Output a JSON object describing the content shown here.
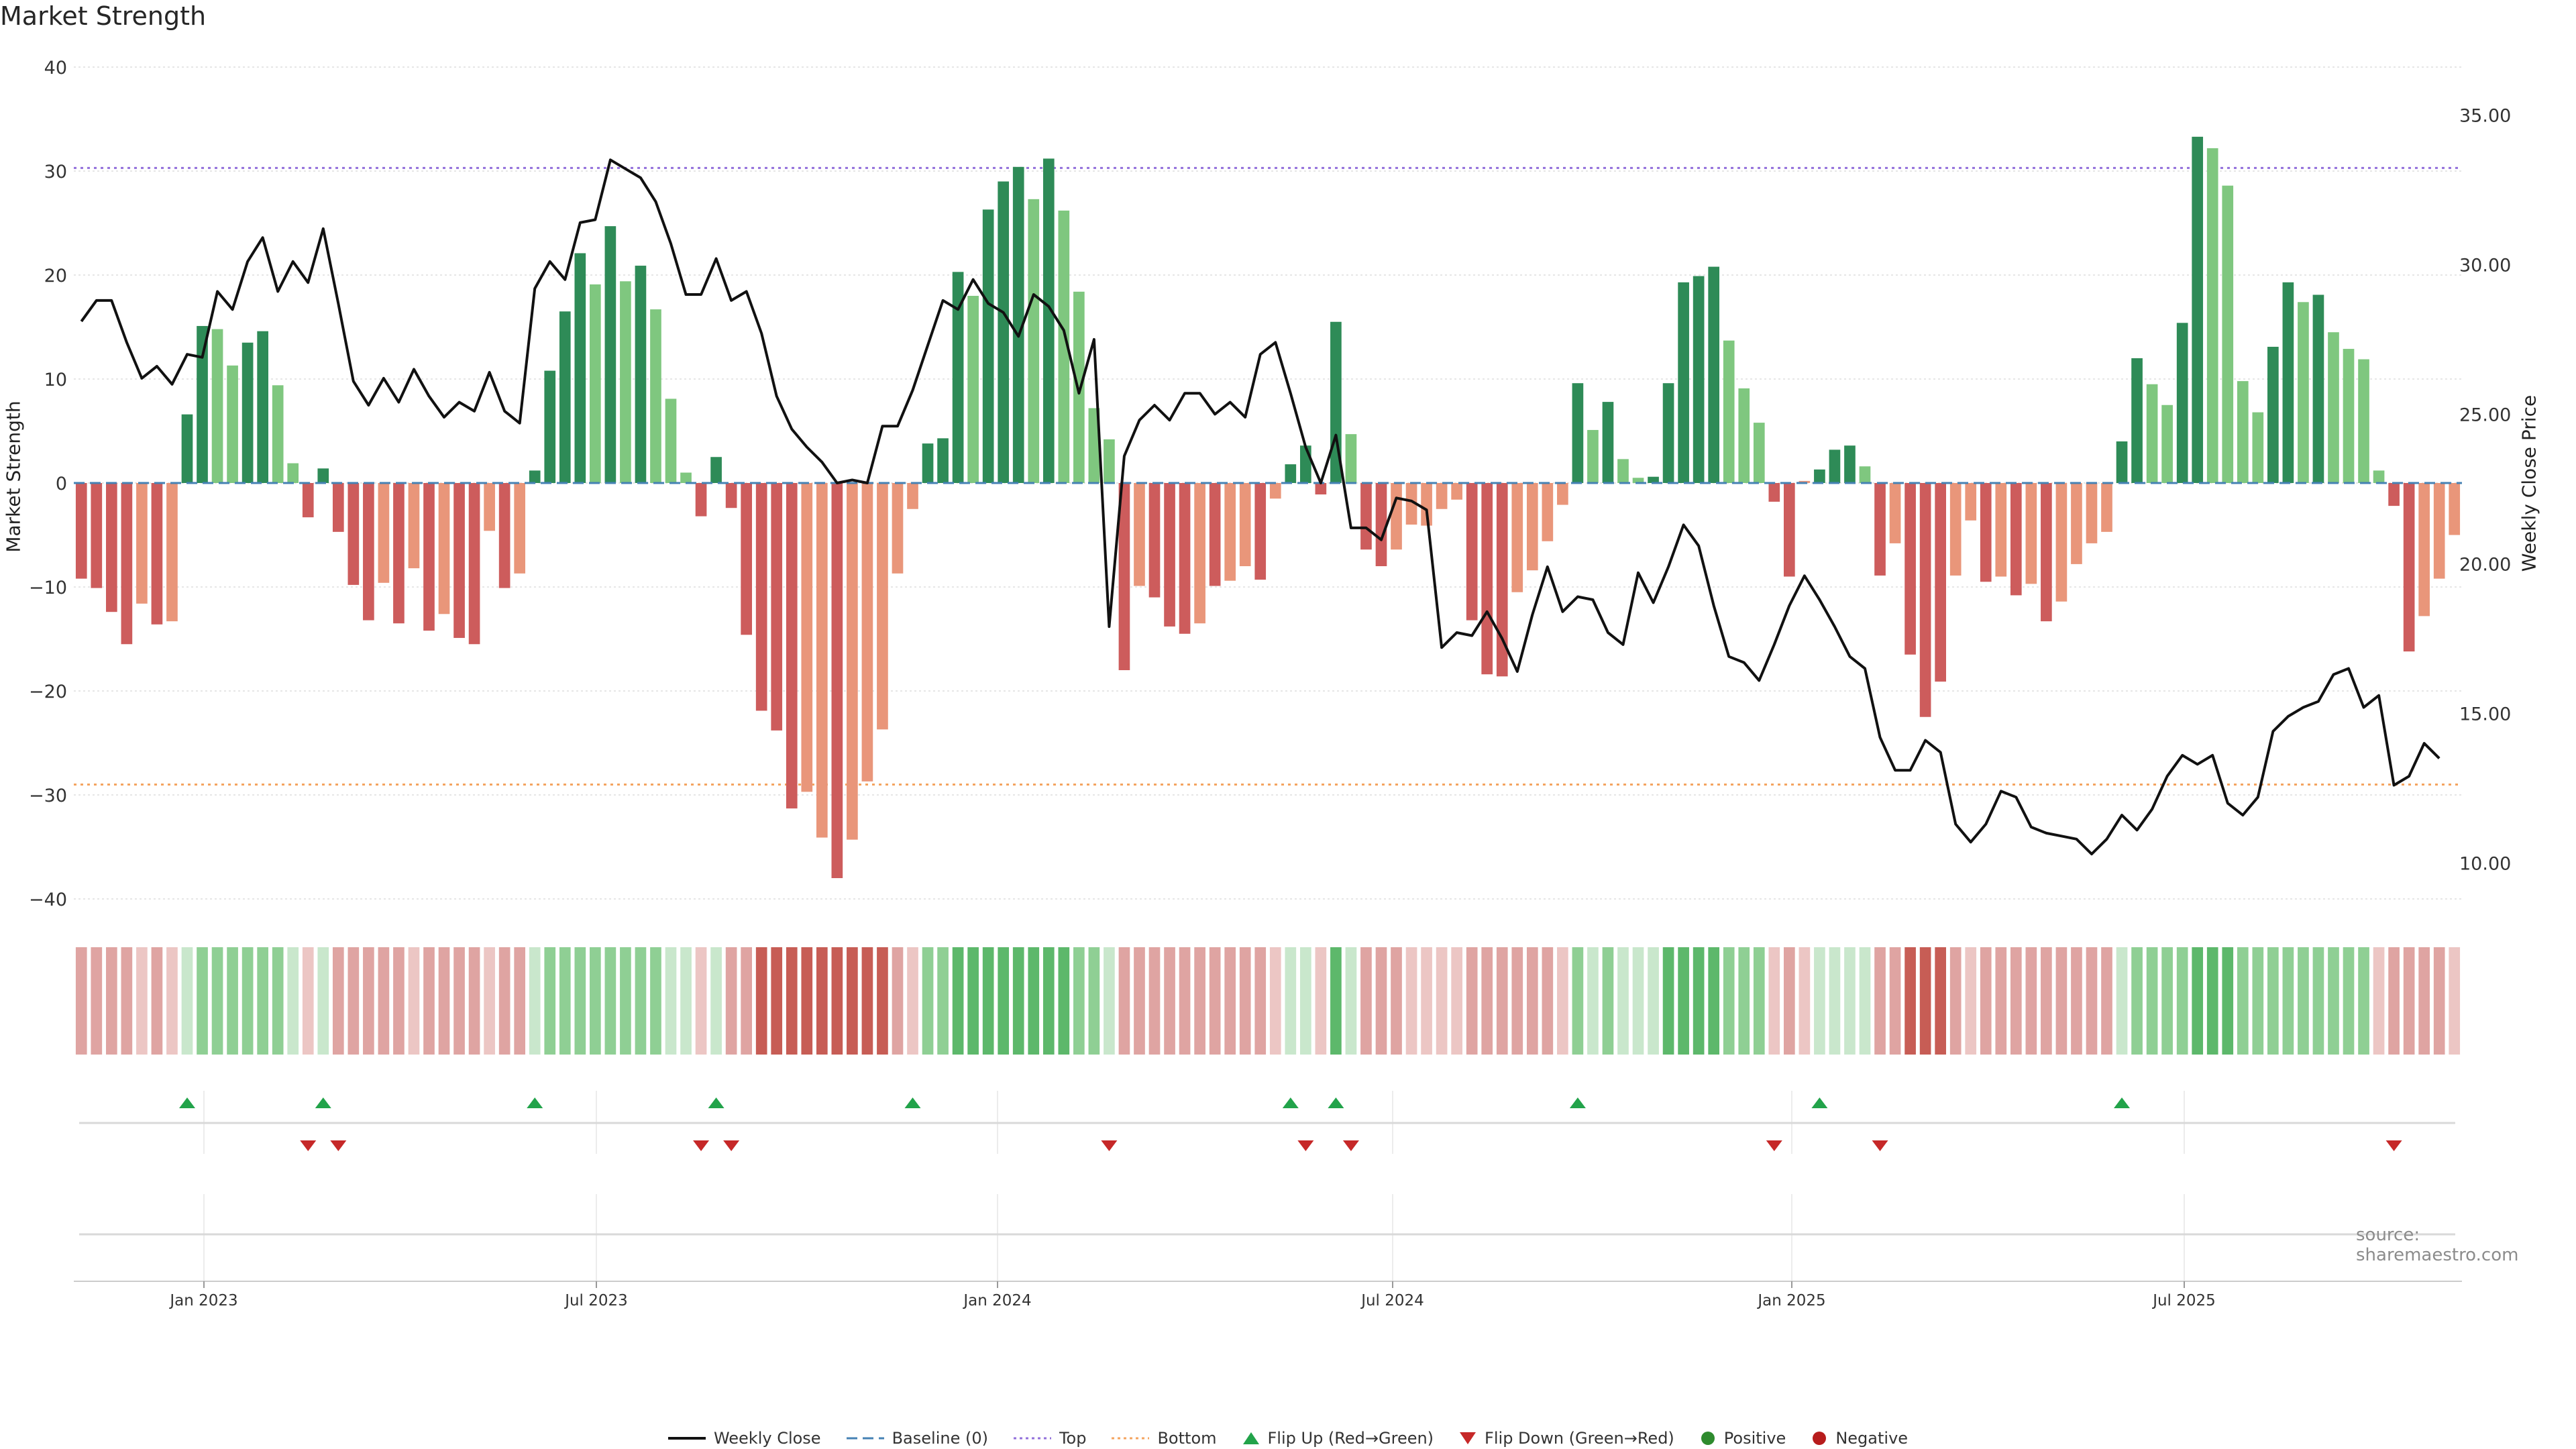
{
  "chart_data": {
    "type": "bar",
    "title": "Market Strength",
    "ylabel": "Market Strength",
    "ylabel_right": "Weekly Close Price",
    "source": "source: sharemaestro.com",
    "ylim": [
      -40,
      40
    ],
    "ylim_right": [
      8.8,
      36.6
    ],
    "yticks": [
      "40",
      "30",
      "20",
      "10",
      "0",
      "−10",
      "−20",
      "−30",
      "−40"
    ],
    "yticks_right": [
      "35.00",
      "30.00",
      "25.00",
      "20.00",
      "15.00",
      "10.00"
    ],
    "xticks": [
      "Jan 2023",
      "Jul 2023",
      "Jan 2024",
      "Jul 2024",
      "Jan 2025",
      "Jul 2025"
    ],
    "top_threshold": 30.3,
    "bottom_threshold": -29.0,
    "strength": [
      -9.2,
      -10.1,
      -12.4,
      -15.5,
      -11.6,
      -13.6,
      -13.3,
      6.6,
      15.1,
      14.8,
      11.3,
      13.5,
      14.6,
      9.4,
      1.9,
      -3.3,
      1.4,
      -4.7,
      -9.8,
      -13.2,
      -9.6,
      -13.5,
      -8.2,
      -14.2,
      -12.6,
      -14.9,
      -15.5,
      -4.6,
      -10.1,
      -8.7,
      1.2,
      10.8,
      16.5,
      22.1,
      19.1,
      24.7,
      19.4,
      20.9,
      16.7,
      8.1,
      1.0,
      -3.2,
      2.5,
      -2.4,
      -14.6,
      -21.9,
      -23.8,
      -31.3,
      -29.7,
      -34.1,
      -38.0,
      -34.3,
      -28.7,
      -23.7,
      -8.7,
      -2.5,
      3.8,
      4.3,
      20.3,
      18.0,
      26.3,
      29.0,
      30.4,
      27.3,
      31.2,
      26.2,
      18.4,
      7.2,
      4.2,
      -18.0,
      -9.9,
      -11.0,
      -13.8,
      -14.5,
      -13.5,
      -9.9,
      -9.4,
      -8.0,
      -9.3,
      -1.5,
      1.8,
      3.6,
      -1.1,
      15.5,
      4.7,
      -6.4,
      -8.0,
      -6.4,
      -4.0,
      -4.1,
      -2.5,
      -1.6,
      -13.2,
      -18.4,
      -18.6,
      -10.5,
      -8.4,
      -5.6,
      -2.1,
      9.6,
      5.1,
      7.8,
      2.3,
      0.5,
      0.6,
      9.6,
      19.3,
      19.9,
      20.8,
      13.7,
      9.1,
      5.8,
      -1.8,
      -9.0,
      0.2,
      1.3,
      3.2,
      3.6,
      1.6,
      -8.9,
      -5.8,
      -16.5,
      -22.5,
      -19.1,
      -8.9,
      -3.6,
      -9.5,
      -9.0,
      -10.8,
      -9.7,
      -13.3,
      -11.4,
      -7.8,
      -5.8,
      -4.7,
      4.0,
      12.0,
      9.5,
      7.5,
      15.4,
      33.3,
      32.2,
      28.6,
      9.8,
      6.8,
      13.1,
      19.3,
      17.4,
      18.1,
      14.5,
      12.9,
      11.9,
      1.2,
      -2.2,
      -16.2,
      -12.8,
      -9.2,
      -5.0
    ],
    "strength_styles": [
      "nd",
      "nd",
      "nd",
      "nd",
      "nl",
      "nd",
      "nl",
      "pd",
      "pd",
      "pl",
      "pl",
      "pd",
      "pd",
      "pl",
      "pl",
      "nd",
      "pd",
      "nd",
      "nd",
      "nd",
      "nl",
      "nd",
      "nl",
      "nd",
      "nl",
      "nd",
      "nd",
      "nl",
      "nd",
      "nl",
      "pd",
      "pd",
      "pd",
      "pd",
      "pl",
      "pd",
      "pl",
      "pd",
      "pl",
      "pl",
      "pl",
      "nd",
      "pd",
      "nd",
      "nd",
      "nd",
      "nd",
      "nd",
      "nl",
      "nl",
      "nd",
      "nl",
      "nl",
      "nl",
      "nl",
      "nl",
      "pd",
      "pd",
      "pd",
      "pl",
      "pd",
      "pd",
      "pd",
      "pl",
      "pd",
      "pl",
      "pl",
      "pl",
      "pl",
      "nd",
      "nl",
      "nd",
      "nd",
      "nd",
      "nl",
      "nd",
      "nl",
      "nl",
      "nd",
      "nl",
      "pd",
      "pd",
      "nd",
      "pd",
      "pl",
      "nd",
      "nd",
      "nl",
      "nl",
      "nl",
      "nl",
      "nl",
      "nd",
      "nd",
      "nd",
      "nl",
      "nl",
      "nl",
      "nl",
      "pd",
      "pl",
      "pd",
      "pl",
      "pl",
      "pd",
      "pd",
      "pd",
      "pd",
      "pd",
      "pl",
      "pl",
      "pl",
      "nd",
      "nd",
      "nl",
      "pd",
      "pd",
      "pd",
      "pl",
      "nd",
      "nl",
      "nd",
      "nd",
      "nd",
      "nl",
      "nl",
      "nd",
      "nl",
      "nd",
      "nl",
      "nd",
      "nl",
      "nl",
      "nl",
      "nl",
      "pd",
      "pd",
      "pl",
      "pl",
      "pd",
      "pd",
      "pl",
      "pl",
      "pl",
      "pl",
      "pd",
      "pd",
      "pl",
      "pd",
      "pl",
      "pl",
      "pl",
      "pl",
      "nd",
      "nd",
      "nl",
      "nl",
      "nl"
    ],
    "weekly_close": [
      28.1,
      28.8,
      28.8,
      27.4,
      26.2,
      26.6,
      26.0,
      27.0,
      26.9,
      29.1,
      28.5,
      30.1,
      30.9,
      29.1,
      30.1,
      29.4,
      31.2,
      28.7,
      26.1,
      25.3,
      26.2,
      25.4,
      26.5,
      25.6,
      24.9,
      25.4,
      25.1,
      26.4,
      25.1,
      24.7,
      29.2,
      30.1,
      29.5,
      31.4,
      31.5,
      33.5,
      33.2,
      32.9,
      32.1,
      30.7,
      29.0,
      29.0,
      30.2,
      28.8,
      29.1,
      27.7,
      25.6,
      24.5,
      23.9,
      23.4,
      22.7,
      22.8,
      22.7,
      24.6,
      24.6,
      25.8,
      27.3,
      28.8,
      28.5,
      29.5,
      28.7,
      28.4,
      27.6,
      29.0,
      28.6,
      27.8,
      25.7,
      27.5,
      17.9,
      23.6,
      24.8,
      25.3,
      24.8,
      25.7,
      25.7,
      25.0,
      25.4,
      24.9,
      27.0,
      27.4,
      25.7,
      23.9,
      22.7,
      24.3,
      21.2,
      21.2,
      20.8,
      22.2,
      22.1,
      21.8,
      17.2,
      17.7,
      17.6,
      18.4,
      17.5,
      16.4,
      18.3,
      19.9,
      18.4,
      18.9,
      18.8,
      17.7,
      17.3,
      19.7,
      18.7,
      19.9,
      21.3,
      20.6,
      18.6,
      16.9,
      16.7,
      16.1,
      17.3,
      18.6,
      19.6,
      18.8,
      17.9,
      16.9,
      16.5,
      14.2,
      13.1,
      13.1,
      14.1,
      13.7,
      11.3,
      10.7,
      11.3,
      12.4,
      12.2,
      11.2,
      11.0,
      10.9,
      10.8,
      10.3,
      10.8,
      11.6,
      11.1,
      11.8,
      12.9,
      13.6,
      13.3,
      13.6,
      12.0,
      11.6,
      12.2,
      14.4,
      14.9,
      15.2,
      15.4,
      16.3,
      16.5,
      15.2,
      15.6,
      12.6,
      12.9,
      14.0,
      13.5
    ],
    "shade_levels": [
      "nm",
      "nm",
      "nm",
      "nm",
      "nl",
      "nm",
      "nl",
      "pl",
      "pm",
      "pm",
      "pm",
      "pm",
      "pm",
      "pm",
      "pl",
      "nl",
      "pl",
      "nm",
      "nm",
      "nm",
      "nm",
      "nm",
      "nl",
      "nm",
      "nm",
      "nm",
      "nm",
      "nl",
      "nm",
      "nm",
      "pl",
      "pm",
      "pm",
      "pm",
      "pm",
      "pm",
      "pm",
      "pm",
      "pm",
      "pl",
      "pl",
      "nl",
      "pl",
      "nm",
      "nm",
      "ns",
      "ns",
      "ns",
      "ns",
      "ns",
      "ns",
      "ns",
      "ns",
      "ns",
      "nm",
      "nl",
      "pm",
      "pm",
      "ps",
      "ps",
      "ps",
      "ps",
      "ps",
      "ps",
      "ps",
      "ps",
      "pm",
      "pm",
      "pl",
      "nm",
      "nm",
      "nm",
      "nm",
      "nm",
      "nm",
      "nm",
      "nm",
      "nm",
      "nm",
      "nl",
      "pl",
      "pl",
      "nl",
      "ps",
      "pl",
      "nm",
      "nm",
      "nm",
      "nl",
      "nl",
      "nl",
      "nl",
      "nm",
      "nm",
      "nm",
      "nm",
      "nm",
      "nm",
      "nl",
      "pm",
      "pl",
      "pm",
      "pl",
      "pl",
      "pl",
      "ps",
      "ps",
      "ps",
      "ps",
      "pm",
      "pm",
      "pm",
      "nl",
      "nm",
      "nl",
      "pl",
      "pl",
      "pl",
      "pl",
      "nm",
      "nm",
      "ns",
      "ns",
      "ns",
      "nm",
      "nl",
      "nm",
      "nm",
      "nm",
      "nm",
      "nm",
      "nm",
      "nm",
      "nm",
      "nm",
      "pl",
      "pm",
      "pm",
      "pm",
      "pm",
      "ps",
      "ps",
      "ps",
      "pm",
      "pm",
      "pm",
      "pm",
      "pm",
      "pm",
      "pm",
      "pm",
      "pm",
      "nl",
      "nm",
      "nm",
      "nm",
      "nm",
      "nl"
    ],
    "flip_up_weeks": [
      7,
      16,
      30,
      42,
      55,
      80,
      83,
      99,
      115,
      135
    ],
    "flip_down_weeks": [
      15,
      17,
      41,
      43,
      68,
      81,
      84,
      112,
      119,
      153
    ],
    "legend": [
      "Weekly Close",
      "Baseline (0)",
      "Top",
      "Bottom",
      "Flip Up (Red→Green)",
      "Flip Down (Green→Red)",
      "Positive",
      "Negative"
    ],
    "colors": {
      "pos_dark": "#2e8b57",
      "pos_light": "#7fc77f",
      "neg_dark": "#cd5c5c",
      "neg_light": "#e9967a",
      "top_line": "#9370db",
      "bottom_line": "#f4a460",
      "baseline": "#4682b4",
      "flip_up": "#22a34a",
      "flip_down": "#c62828",
      "shade_ps": "#5db86b",
      "shade_pm": "#8fcf94",
      "shade_pl": "#c9e7cc",
      "shade_ns": "#c75d55",
      "shade_nm": "#dfa4a2",
      "shade_nl": "#ecc6c4",
      "close_line": "#111111"
    }
  }
}
